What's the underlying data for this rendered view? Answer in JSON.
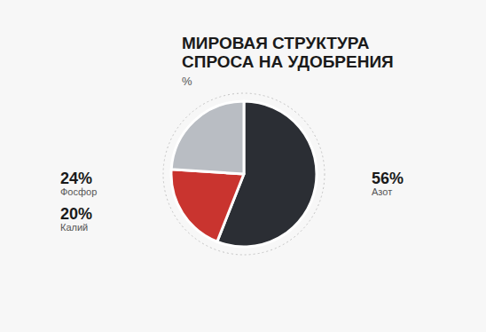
{
  "chart_data": {
    "type": "pie",
    "title": "МИРОВАЯ СТРУКТУРА СПРОСА НА УДОБРЕНИЯ",
    "subtitle": "%",
    "categories": [
      "Азот",
      "Калий",
      "Фосфор"
    ],
    "values": [
      56,
      20,
      24
    ],
    "value_labels": [
      "56%",
      "20%",
      "24%"
    ],
    "colors": [
      "#2b2e34",
      "#c9342f",
      "#b9bdc3"
    ],
    "data_labels": true
  }
}
